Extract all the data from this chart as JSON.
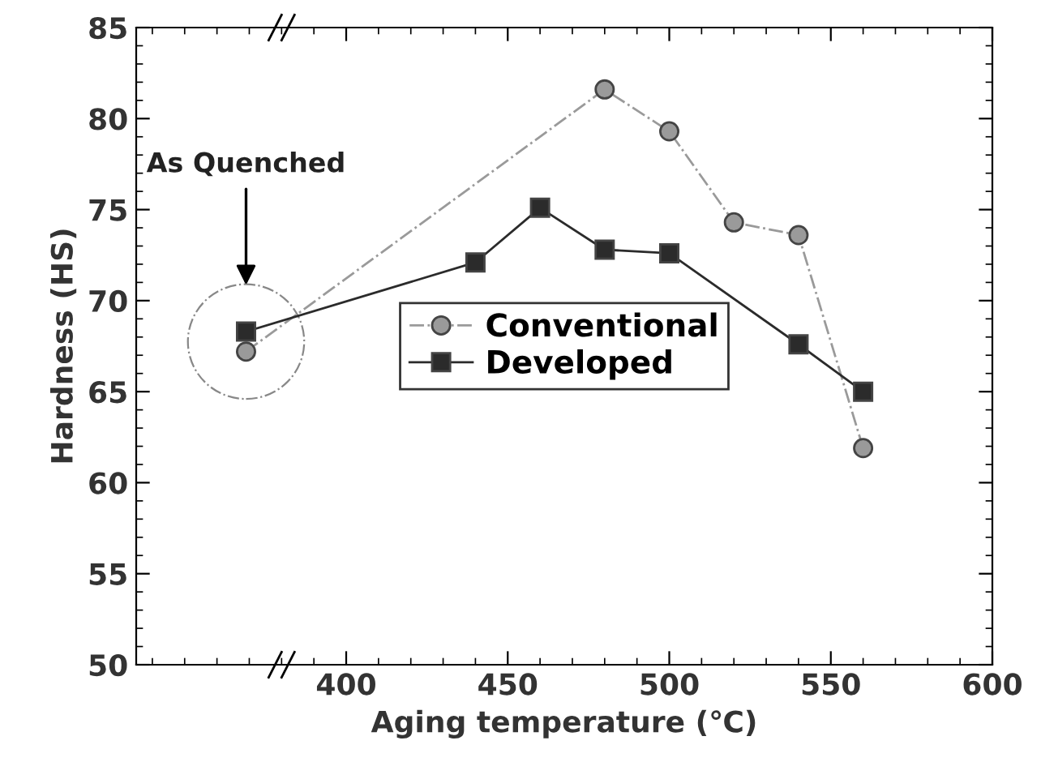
{
  "chart_data": {
    "type": "line",
    "xlabel": "Aging temperature (℃)",
    "ylabel": "Hardness (HS)",
    "xlim": [
      335,
      600
    ],
    "xticks": [
      400,
      450,
      500,
      550,
      600
    ],
    "ylim": [
      50,
      85
    ],
    "yticks": [
      50,
      55,
      60,
      65,
      70,
      75,
      80,
      85
    ],
    "grid": false,
    "legend": "center",
    "annotations": [
      "As Quenched"
    ],
    "series": [
      {
        "name": "Conventional",
        "color": "#9a9a9a",
        "marker": "circle",
        "line_style": "dashed",
        "x": [
          369,
          480,
          500,
          520,
          540,
          560
        ],
        "values": [
          67.2,
          81.6,
          79.3,
          74.3,
          73.6,
          61.9
        ]
      },
      {
        "name": "Developed",
        "color": "#2b2b2b",
        "marker": "square",
        "line_style": "solid",
        "x": [
          369,
          440,
          460,
          480,
          500,
          540,
          560
        ],
        "values": [
          68.3,
          72.1,
          75.1,
          72.8,
          72.6,
          67.6,
          65.0
        ]
      }
    ]
  }
}
